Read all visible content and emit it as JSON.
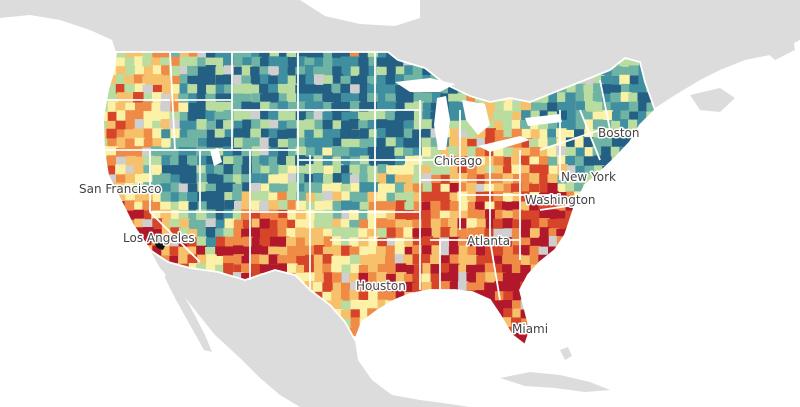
{
  "map": {
    "colors": {
      "water": "#ffffff",
      "land": "#dcdcdc",
      "state_border": "#ffffff",
      "no_data": "#cfcfcf"
    },
    "palette": [
      "#b2182b",
      "#d6452a",
      "#ef8a47",
      "#f6c16a",
      "#fbf2a8",
      "#b9dca0",
      "#6fb3a4",
      "#3f8fa0",
      "#245f84"
    ],
    "cities": [
      {
        "id": "boston",
        "label": "Boston"
      },
      {
        "id": "chicago",
        "label": "Chicago"
      },
      {
        "id": "new-york",
        "label": "New York"
      },
      {
        "id": "san-francisco",
        "label": "San Francisco"
      },
      {
        "id": "washington",
        "label": "Washington"
      },
      {
        "id": "los-angeles",
        "label": "Los Angeles"
      },
      {
        "id": "atlanta",
        "label": "Atlanta"
      },
      {
        "id": "houston",
        "label": "Houston"
      },
      {
        "id": "miami",
        "label": "Miami"
      }
    ]
  }
}
